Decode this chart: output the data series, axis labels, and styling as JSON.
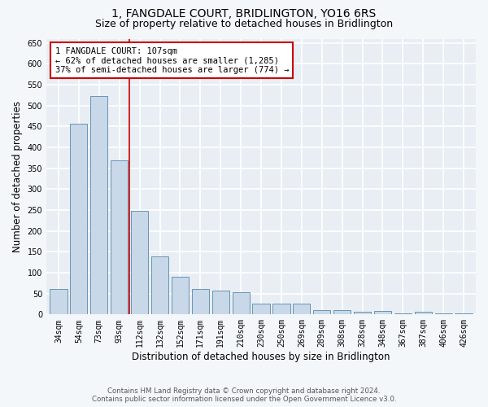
{
  "title": "1, FANGDALE COURT, BRIDLINGTON, YO16 6RS",
  "subtitle": "Size of property relative to detached houses in Bridlington",
  "xlabel": "Distribution of detached houses by size in Bridlington",
  "ylabel": "Number of detached properties",
  "categories": [
    "34sqm",
    "54sqm",
    "73sqm",
    "93sqm",
    "112sqm",
    "132sqm",
    "152sqm",
    "171sqm",
    "191sqm",
    "210sqm",
    "230sqm",
    "250sqm",
    "269sqm",
    "289sqm",
    "308sqm",
    "328sqm",
    "348sqm",
    "367sqm",
    "387sqm",
    "406sqm",
    "426sqm"
  ],
  "values": [
    62,
    457,
    522,
    368,
    248,
    138,
    91,
    62,
    57,
    53,
    26,
    26,
    26,
    11,
    11,
    6,
    8,
    3,
    6,
    3,
    3
  ],
  "bar_color": "#c8d8e8",
  "bar_edge_color": "#5588aa",
  "marker_label": "1 FANGDALE COURT: 107sqm",
  "annotation_line1": "← 62% of detached houses are smaller (1,285)",
  "annotation_line2": "37% of semi-detached houses are larger (774) →",
  "ylim": [
    0,
    660
  ],
  "yticks": [
    0,
    50,
    100,
    150,
    200,
    250,
    300,
    350,
    400,
    450,
    500,
    550,
    600,
    650
  ],
  "footer_line1": "Contains HM Land Registry data © Crown copyright and database right 2024.",
  "footer_line2": "Contains public sector information licensed under the Open Government Licence v3.0.",
  "bg_color": "#f4f7fa",
  "plot_bg_color": "#e8eef4",
  "grid_color": "#ffffff",
  "title_fontsize": 10,
  "subtitle_fontsize": 9,
  "axis_label_fontsize": 8.5,
  "tick_fontsize": 7,
  "annotation_box_color": "#ffffff",
  "annotation_box_edge": "#cc0000",
  "marker_line_color": "#cc0000",
  "annotation_fontsize": 7.5
}
